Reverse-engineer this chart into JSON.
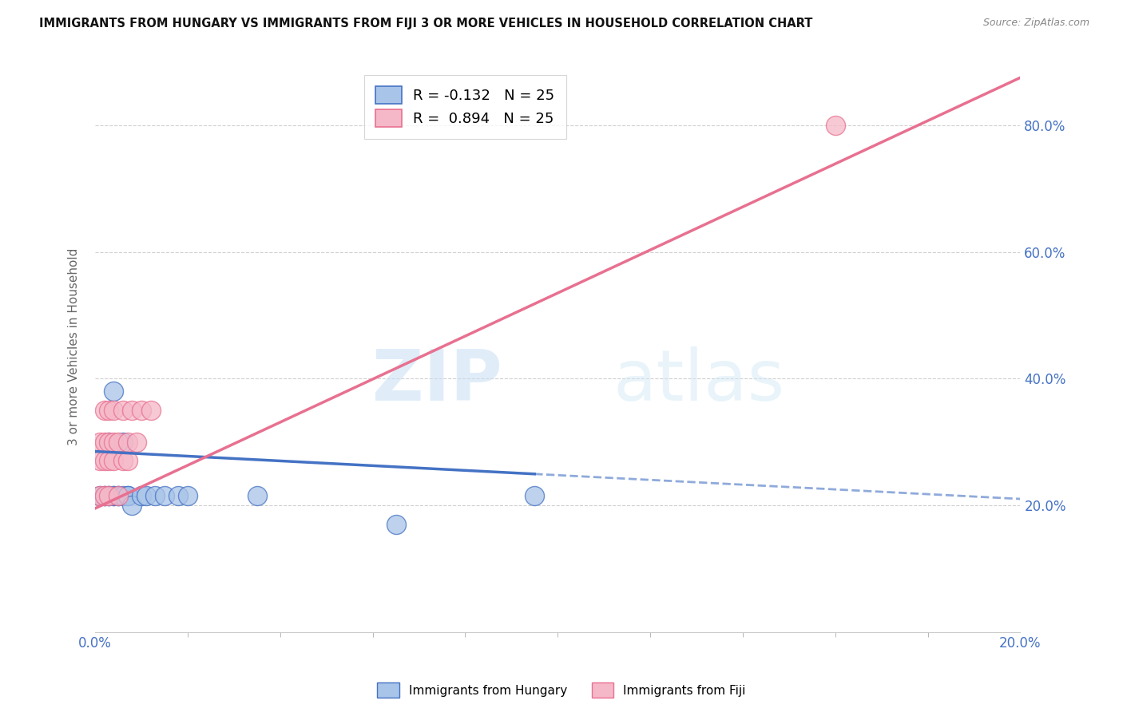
{
  "title": "IMMIGRANTS FROM HUNGARY VS IMMIGRANTS FROM FIJI 3 OR MORE VEHICLES IN HOUSEHOLD CORRELATION CHART",
  "source": "Source: ZipAtlas.com",
  "ylabel": "3 or more Vehicles in Household",
  "legend_hungary": "R = -0.132   N = 25",
  "legend_fiji": "R =  0.894   N = 25",
  "legend_label_hungary": "Immigrants from Hungary",
  "legend_label_fiji": "Immigrants from Fiji",
  "watermark_zip": "ZIP",
  "watermark_atlas": "atlas",
  "color_hungary": "#a8c4e8",
  "color_fiji": "#f5b8c8",
  "trendline_hungary_color": "#4472c4",
  "trendline_fiji_color": "#e87090",
  "background_color": "#ffffff",
  "grid_color": "#d0d0d0",
  "hungary_x": [
    0.001,
    0.002,
    0.002,
    0.003,
    0.003,
    0.003,
    0.004,
    0.004,
    0.004,
    0.005,
    0.005,
    0.006,
    0.006,
    0.007,
    0.007,
    0.008,
    0.01,
    0.011,
    0.013,
    0.015,
    0.018,
    0.02,
    0.035,
    0.065,
    0.095
  ],
  "hungary_y": [
    0.215,
    0.215,
    0.215,
    0.215,
    0.215,
    0.3,
    0.215,
    0.215,
    0.38,
    0.215,
    0.215,
    0.215,
    0.3,
    0.215,
    0.215,
    0.2,
    0.215,
    0.215,
    0.215,
    0.215,
    0.215,
    0.215,
    0.215,
    0.17,
    0.215
  ],
  "fiji_x": [
    0.001,
    0.001,
    0.001,
    0.002,
    0.002,
    0.002,
    0.002,
    0.003,
    0.003,
    0.003,
    0.003,
    0.004,
    0.004,
    0.004,
    0.005,
    0.005,
    0.006,
    0.006,
    0.007,
    0.007,
    0.008,
    0.009,
    0.01,
    0.012,
    0.16
  ],
  "fiji_y": [
    0.215,
    0.27,
    0.3,
    0.215,
    0.27,
    0.3,
    0.35,
    0.215,
    0.27,
    0.3,
    0.35,
    0.27,
    0.3,
    0.35,
    0.215,
    0.3,
    0.27,
    0.35,
    0.27,
    0.3,
    0.35,
    0.3,
    0.35,
    0.35,
    0.8
  ],
  "xmin": 0.0,
  "xmax": 0.2,
  "ymin": 0.0,
  "ymax": 0.9,
  "ytick_positions": [
    0.0,
    0.2,
    0.4,
    0.6,
    0.8
  ],
  "ytick_labels": [
    "",
    "20.0%",
    "40.0%",
    "60.0%",
    "80.0%"
  ]
}
